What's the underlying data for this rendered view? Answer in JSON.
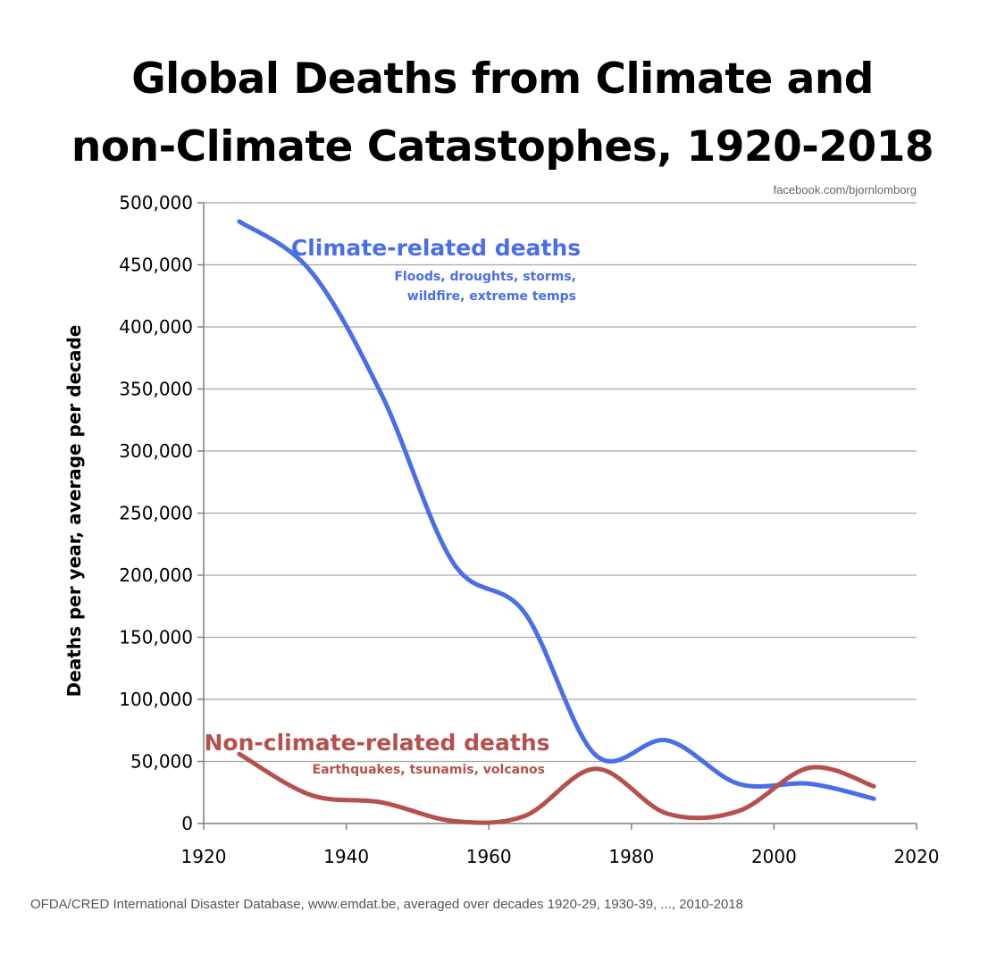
{
  "chart_data": {
    "type": "line",
    "title_line1": "Global Deaths from Climate and",
    "title_line2": "non-Climate Catastophes, 1920-2018",
    "credit": "facebook.com/bjornlomborg",
    "ylabel": "Deaths per year, average per decade",
    "xlim": [
      1920,
      2020
    ],
    "ylim": [
      0,
      500000
    ],
    "x_ticks": [
      1920,
      1940,
      1960,
      1980,
      2000,
      2020
    ],
    "y_ticks": [
      0,
      50000,
      100000,
      150000,
      200000,
      250000,
      300000,
      350000,
      400000,
      450000,
      500000
    ],
    "y_tick_labels": [
      "0",
      "50,000",
      "100,000",
      "150,000",
      "200,000",
      "250,000",
      "300,000",
      "350,000",
      "400,000",
      "450,000",
      "500,000"
    ],
    "grid": true,
    "series": [
      {
        "name": "Climate-related deaths",
        "subtitle_line1": "Floods, droughts, storms,",
        "subtitle_line2": "wildfire, extreme temps",
        "color": "#4a6ee8",
        "x": [
          1925,
          1935,
          1945,
          1955,
          1965,
          1975,
          1985,
          1995,
          2005,
          2014
        ],
        "values": [
          485000,
          445000,
          345000,
          210000,
          170000,
          55000,
          67000,
          32000,
          32000,
          20000
        ]
      },
      {
        "name": "Non-climate-related deaths",
        "subtitle_line1": "Earthquakes, tsunamis, volcanos",
        "color": "#b5504c",
        "x": [
          1925,
          1935,
          1945,
          1955,
          1965,
          1975,
          1985,
          1995,
          2005,
          2014
        ],
        "values": [
          56000,
          23000,
          17000,
          2000,
          6000,
          44000,
          8000,
          10000,
          45000,
          30000
        ]
      }
    ]
  },
  "source_note": "OFDA/CRED International Disaster Database, www.emdat.be, averaged over decades 1920-29, 1930-39, ..., 2010-2018"
}
